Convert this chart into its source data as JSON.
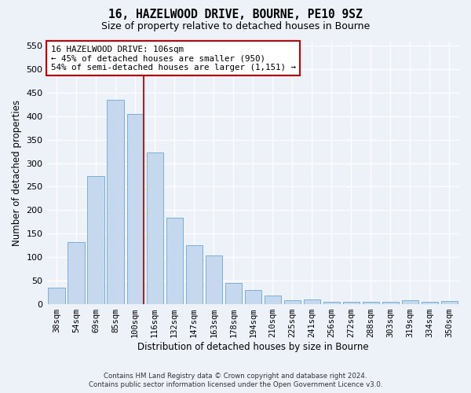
{
  "title": "16, HAZELWOOD DRIVE, BOURNE, PE10 9SZ",
  "subtitle": "Size of property relative to detached houses in Bourne",
  "xlabel": "Distribution of detached houses by size in Bourne",
  "ylabel": "Number of detached properties",
  "categories": [
    "38sqm",
    "54sqm",
    "69sqm",
    "85sqm",
    "100sqm",
    "116sqm",
    "132sqm",
    "147sqm",
    "163sqm",
    "178sqm",
    "194sqm",
    "210sqm",
    "225sqm",
    "241sqm",
    "256sqm",
    "272sqm",
    "288sqm",
    "303sqm",
    "319sqm",
    "334sqm",
    "350sqm"
  ],
  "values": [
    35,
    132,
    272,
    435,
    405,
    322,
    184,
    125,
    104,
    45,
    29,
    18,
    8,
    10,
    5,
    5,
    4,
    5,
    7,
    5,
    6
  ],
  "bar_color": "#c5d8ed",
  "bar_edge_color": "#7bafd4",
  "annotation_line1": "16 HAZELWOOD DRIVE: 106sqm",
  "annotation_line2": "← 45% of detached houses are smaller (950)",
  "annotation_line3": "54% of semi-detached houses are larger (1,151) →",
  "annotation_box_color": "#ffffff",
  "annotation_box_edge_color": "#cc0000",
  "ylim": [
    0,
    560
  ],
  "yticks": [
    0,
    50,
    100,
    150,
    200,
    250,
    300,
    350,
    400,
    450,
    500,
    550
  ],
  "footer_line1": "Contains HM Land Registry data © Crown copyright and database right 2024.",
  "footer_line2": "Contains public sector information licensed under the Open Government Licence v3.0.",
  "bg_color": "#edf1f8",
  "grid_color": "#ffffff",
  "red_line_color": "#aa2222",
  "property_bin_index": 4
}
